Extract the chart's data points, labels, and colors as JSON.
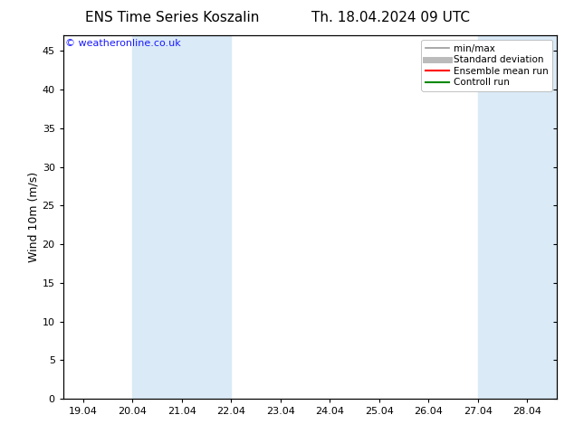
{
  "title_left": "ENS Time Series Koszalin",
  "title_right": "Th. 18.04.2024 09 UTC",
  "ylabel": "Wind 10m (m/s)",
  "watermark": "© weatheronline.co.uk",
  "watermark_color": "#1a1aff",
  "background_color": "#ffffff",
  "plot_bg_color": "#ffffff",
  "shaded_color": "#daeaf7",
  "ylim": [
    0,
    47
  ],
  "yticks": [
    0,
    5,
    10,
    15,
    20,
    25,
    30,
    35,
    40,
    45
  ],
  "x_min": 18.6,
  "x_max": 28.6,
  "xtick_positions": [
    19,
    20,
    21,
    22,
    23,
    24,
    25,
    26,
    27,
    28
  ],
  "xtick_labels": [
    "19.04",
    "20.04",
    "21.04",
    "22.04",
    "23.04",
    "24.04",
    "25.04",
    "26.04",
    "27.04",
    "28.04"
  ],
  "shaded_bands": [
    {
      "x_start": 20.0,
      "x_end": 22.0
    },
    {
      "x_start": 27.0,
      "x_end": 28.6
    }
  ],
  "legend_entries": [
    {
      "label": "min/max",
      "color": "#999999",
      "lw": 1.2,
      "style": "solid"
    },
    {
      "label": "Standard deviation",
      "color": "#bbbbbb",
      "lw": 5,
      "style": "solid"
    },
    {
      "label": "Ensemble mean run",
      "color": "#ff0000",
      "lw": 1.5,
      "style": "solid"
    },
    {
      "label": "Controll run",
      "color": "#008800",
      "lw": 1.5,
      "style": "solid"
    }
  ],
  "font_size_title": 11,
  "font_size_tick": 8,
  "font_size_legend": 7.5,
  "font_size_ylabel": 9,
  "font_size_watermark": 8
}
